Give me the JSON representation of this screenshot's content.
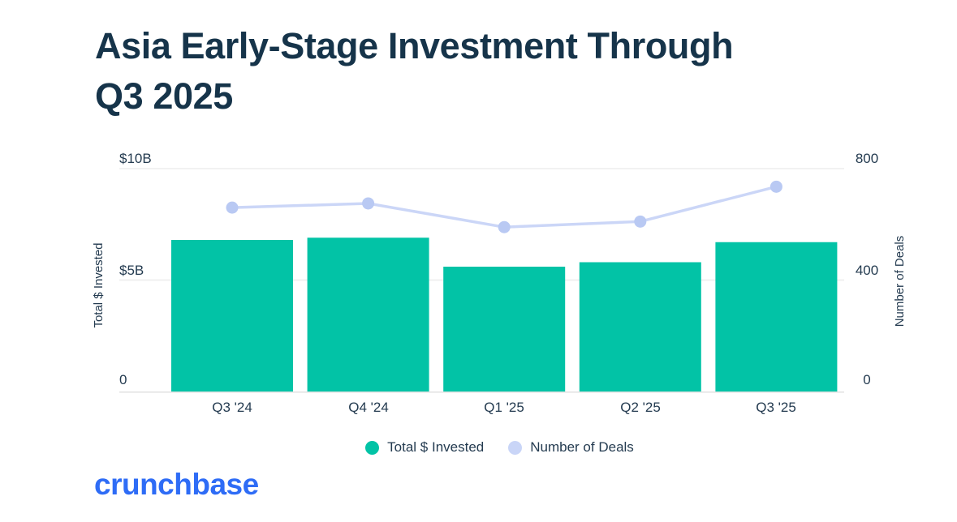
{
  "title": {
    "line1": "Asia Early-Stage Investment Through",
    "line2": "Q3 2025"
  },
  "chart_data": {
    "type": "bar",
    "subtype": "combo-bar-line",
    "categories": [
      "Q3 '24",
      "Q4 '24",
      "Q1 '25",
      "Q2 '25",
      "Q3 '25"
    ],
    "series": [
      {
        "name": "Total $ Invested",
        "type": "bar",
        "axis": "left",
        "unit": "USD billions",
        "values": [
          6.8,
          6.9,
          5.6,
          5.8,
          6.7
        ],
        "color": "#02C3A6"
      },
      {
        "name": "Number of Deals",
        "type": "line",
        "axis": "right",
        "unit": "deals",
        "values": [
          660,
          675,
          590,
          610,
          735
        ],
        "color": "#CBD6F7",
        "marker_color": "#B9C9F3"
      }
    ],
    "left_axis": {
      "title": "Total $ Invested",
      "ticks": [
        "$10B",
        "$5B",
        "0"
      ],
      "min": 0,
      "max": 10
    },
    "right_axis": {
      "title": "Number of Deals",
      "ticks": [
        "800",
        "400",
        "0"
      ],
      "min": 0,
      "max": 800
    },
    "grid": {
      "horizontal": true,
      "color": "#EDEDED",
      "baseline_color": "#E0E0E0"
    },
    "legend_position": "bottom"
  },
  "legend": {
    "items": [
      {
        "label": "Total $ Invested",
        "color": "#02C3A6"
      },
      {
        "label": "Number of Deals",
        "color": "#C9D5F7"
      }
    ]
  },
  "branding": {
    "logo_text": "crunchbase",
    "logo_color": "#2E6CF6"
  },
  "theme": {
    "title_color": "#16344A",
    "axis_text_color": "#243B50",
    "background": "#FFFFFF"
  }
}
